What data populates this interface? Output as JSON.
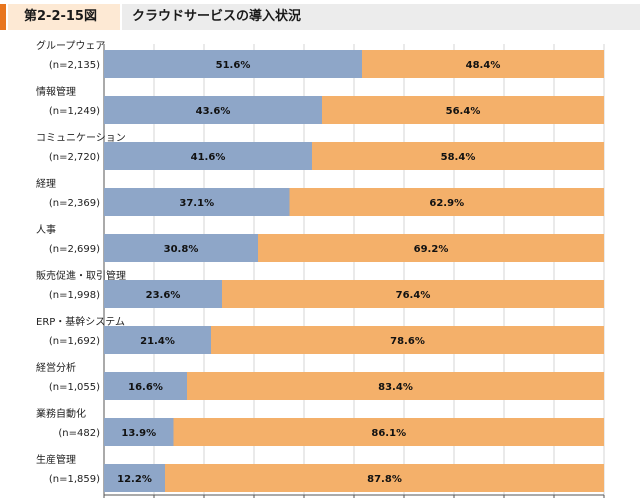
{
  "header": {
    "figure_number": "第2-2-15図",
    "title": "クラウドサービスの導入状況"
  },
  "colors": {
    "series_a": "#8ea6c8",
    "series_b": "#f4b06a",
    "accent": "#e8761f"
  },
  "chart_data": {
    "type": "bar",
    "orientation": "horizontal",
    "stacked": true,
    "percent": true,
    "categories": [
      "グループウェア",
      "情報管理",
      "コミュニケーション",
      "経理",
      "人事",
      "販売促進・取引管理",
      "ERP・基幹システム",
      "経営分析",
      "業務自動化",
      "生産管理"
    ],
    "sample_sizes": [
      "(n=2,135)",
      "(n=1,249)",
      "(n=2,720)",
      "(n=2,369)",
      "(n=2,699)",
      "(n=1,998)",
      "(n=1,692)",
      "(n=1,055)",
      "(n=482)",
      "(n=1,859)"
    ],
    "series": [
      {
        "values": [
          51.6,
          43.6,
          41.6,
          37.1,
          30.8,
          23.6,
          21.4,
          16.6,
          13.9,
          12.2
        ],
        "labels": [
          "51.6%",
          "43.6%",
          "41.6%",
          "37.1%",
          "30.8%",
          "23.6%",
          "21.4%",
          "16.6%",
          "13.9%",
          "12.2%"
        ]
      },
      {
        "values": [
          48.4,
          56.4,
          58.4,
          62.9,
          69.2,
          76.4,
          78.6,
          83.4,
          86.1,
          87.8
        ],
        "labels": [
          "48.4%",
          "56.4%",
          "58.4%",
          "62.9%",
          "69.2%",
          "76.4%",
          "78.6%",
          "83.4%",
          "86.1%",
          "87.8%"
        ]
      }
    ],
    "xlim": [
      0,
      100
    ],
    "grid": true
  }
}
